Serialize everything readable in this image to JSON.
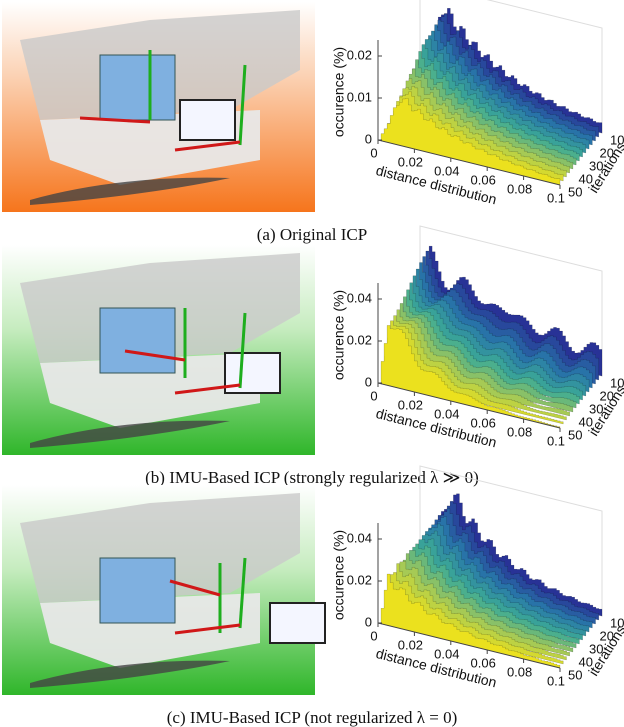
{
  "panels": [
    {
      "caption": "(a) Original ICP",
      "chart": {
        "ylabel": "occurence (%)",
        "xlabel": "distance distribution",
        "zlabel": "iterations",
        "yticks": [
          0,
          0.01,
          0.02
        ],
        "xticks": [
          0,
          0.02,
          0.04,
          0.06,
          0.08,
          0.1
        ],
        "zticks": [
          10,
          20,
          30,
          40,
          50
        ]
      }
    },
    {
      "caption": "(b) IMU-Based ICP (strongly regularized λ ≫ 0)",
      "chart": {
        "ylabel": "occurence (%)",
        "xlabel": "distance distribution",
        "zlabel": "iterations",
        "yticks": [
          0,
          0.02,
          0.04
        ],
        "xticks": [
          0,
          0.02,
          0.04,
          0.06,
          0.08,
          0.1
        ],
        "zticks": [
          10,
          20,
          30,
          40,
          50
        ]
      }
    },
    {
      "caption": "(c) IMU-Based ICP (not regularized λ = 0)",
      "chart": {
        "ylabel": "occurence (%)",
        "xlabel": "distance distribution",
        "zlabel": "iterations",
        "yticks": [
          0,
          0.02,
          0.04
        ],
        "xticks": [
          0,
          0.02,
          0.04,
          0.06,
          0.08,
          0.1
        ],
        "zticks": [
          10,
          20,
          30,
          40,
          50
        ]
      }
    }
  ]
}
